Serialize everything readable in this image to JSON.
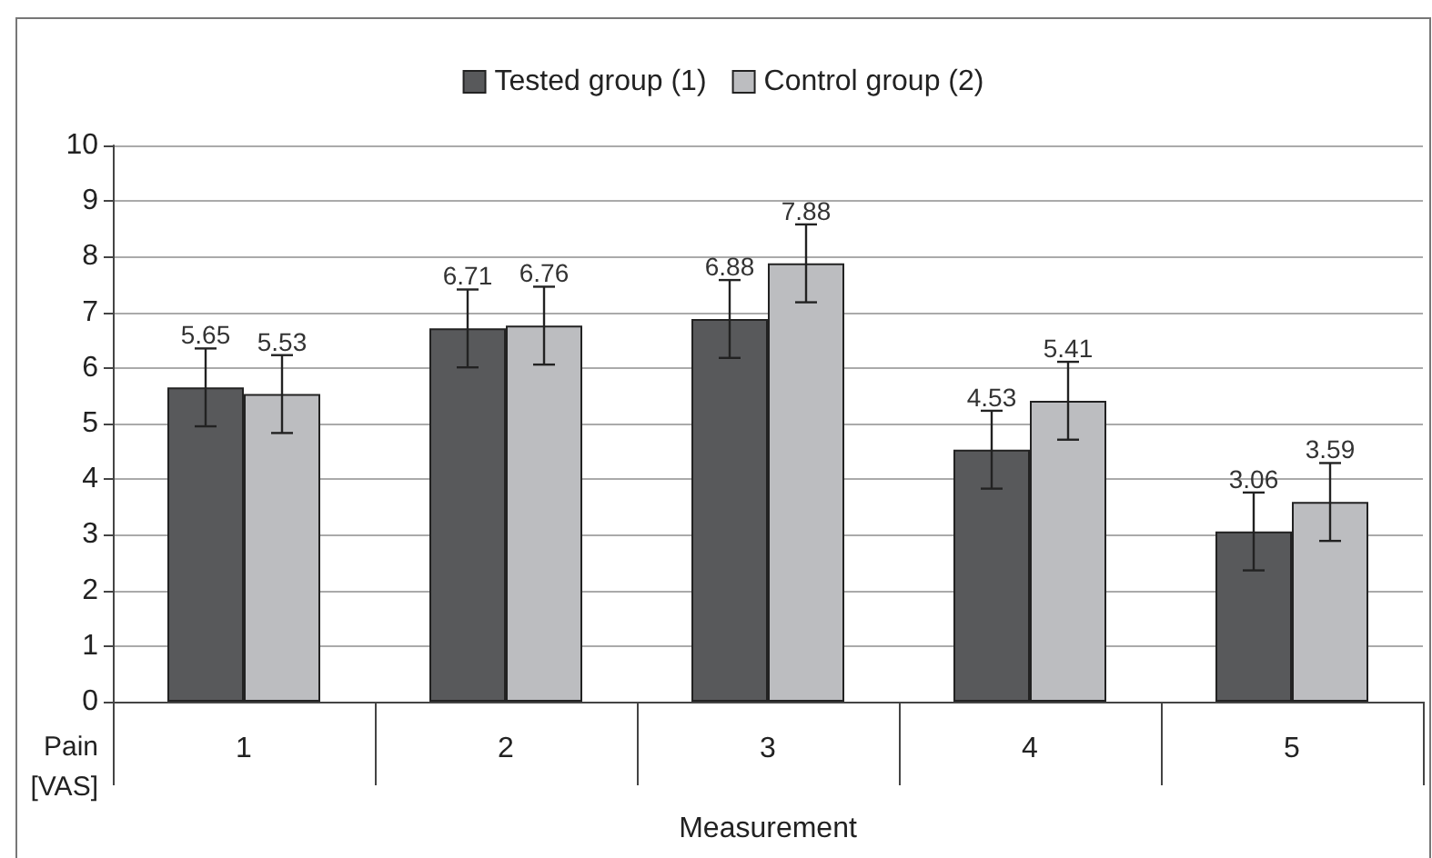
{
  "chart_data": {
    "type": "bar",
    "xlabel": "Measurement",
    "ylabel": "Pain [VAS]",
    "categories": [
      "1",
      "2",
      "3",
      "4",
      "5"
    ],
    "series": [
      {
        "name": "Tested group (1)",
        "color": "#58595b",
        "values": [
          5.65,
          6.71,
          6.88,
          4.53,
          3.06
        ],
        "errors": [
          0.7,
          0.7,
          0.7,
          0.7,
          0.7
        ]
      },
      {
        "name": "Control group (2)",
        "color": "#bcbdc0",
        "values": [
          5.53,
          6.76,
          7.88,
          5.41,
          3.59
        ],
        "errors": [
          0.7,
          0.7,
          0.7,
          0.7,
          0.7
        ]
      }
    ],
    "ylim": [
      0,
      10
    ],
    "yticks": [
      0,
      1,
      2,
      3,
      4,
      5,
      6,
      7,
      8,
      9,
      10
    ],
    "grid": "y",
    "legend": "top",
    "data_labels": true
  }
}
